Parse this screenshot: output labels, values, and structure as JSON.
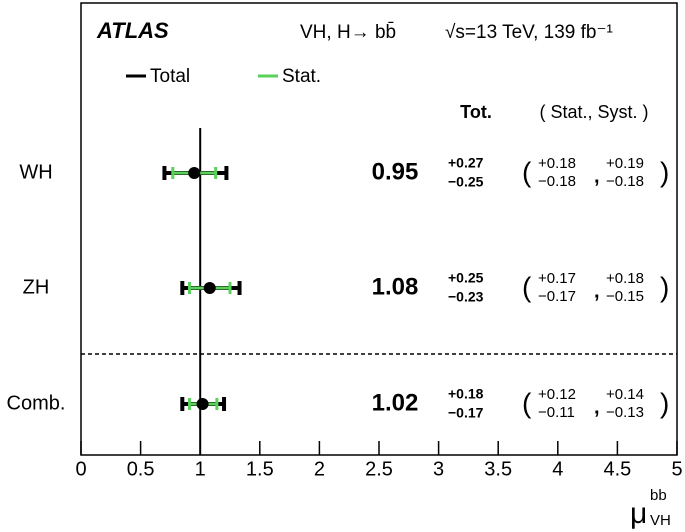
{
  "chart_data": {
    "type": "forest",
    "experiment": "ATLAS",
    "process": "VH, H→ bb̄",
    "conditions": "√s=13 TeV, 139 fb⁻¹",
    "column_headers": [
      "Tot.",
      "( Stat., Syst. )"
    ],
    "categories": [
      "WH",
      "ZH",
      "Comb."
    ],
    "values": [
      0.95,
      1.08,
      1.02
    ],
    "series": [
      {
        "name": "Total",
        "color": "#000000",
        "err_plus": [
          0.27,
          0.25,
          0.18
        ],
        "err_minus": [
          0.25,
          0.23,
          0.17
        ],
        "plus_labels": [
          "+0.27",
          "+0.25",
          "+0.18"
        ],
        "minus_labels": [
          "−0.25",
          "−0.23",
          "−0.17"
        ]
      },
      {
        "name": "Stat.",
        "color": "#5ad15a",
        "err_plus": [
          0.18,
          0.17,
          0.12
        ],
        "err_minus": [
          0.18,
          0.17,
          0.11
        ],
        "plus_labels": [
          "+0.18",
          "+0.17",
          "+0.12"
        ],
        "minus_labels": [
          "−0.18",
          "−0.17",
          "−0.11"
        ]
      }
    ],
    "syst": {
      "err_plus": [
        0.19,
        0.18,
        0.14
      ],
      "err_minus": [
        0.18,
        0.15,
        0.13
      ],
      "plus_labels": [
        "+0.19",
        "+0.18",
        "+0.14"
      ],
      "minus_labels": [
        "−0.18",
        "−0.15",
        "−0.13"
      ]
    },
    "reference_line": 1,
    "x_label": {
      "symbol": "μ",
      "sup": "bb",
      "sub": "VH"
    },
    "xlim": [
      0,
      5
    ],
    "xticks": [
      0,
      0.5,
      1,
      1.5,
      2,
      2.5,
      3,
      3.5,
      4,
      4.5,
      5
    ]
  }
}
